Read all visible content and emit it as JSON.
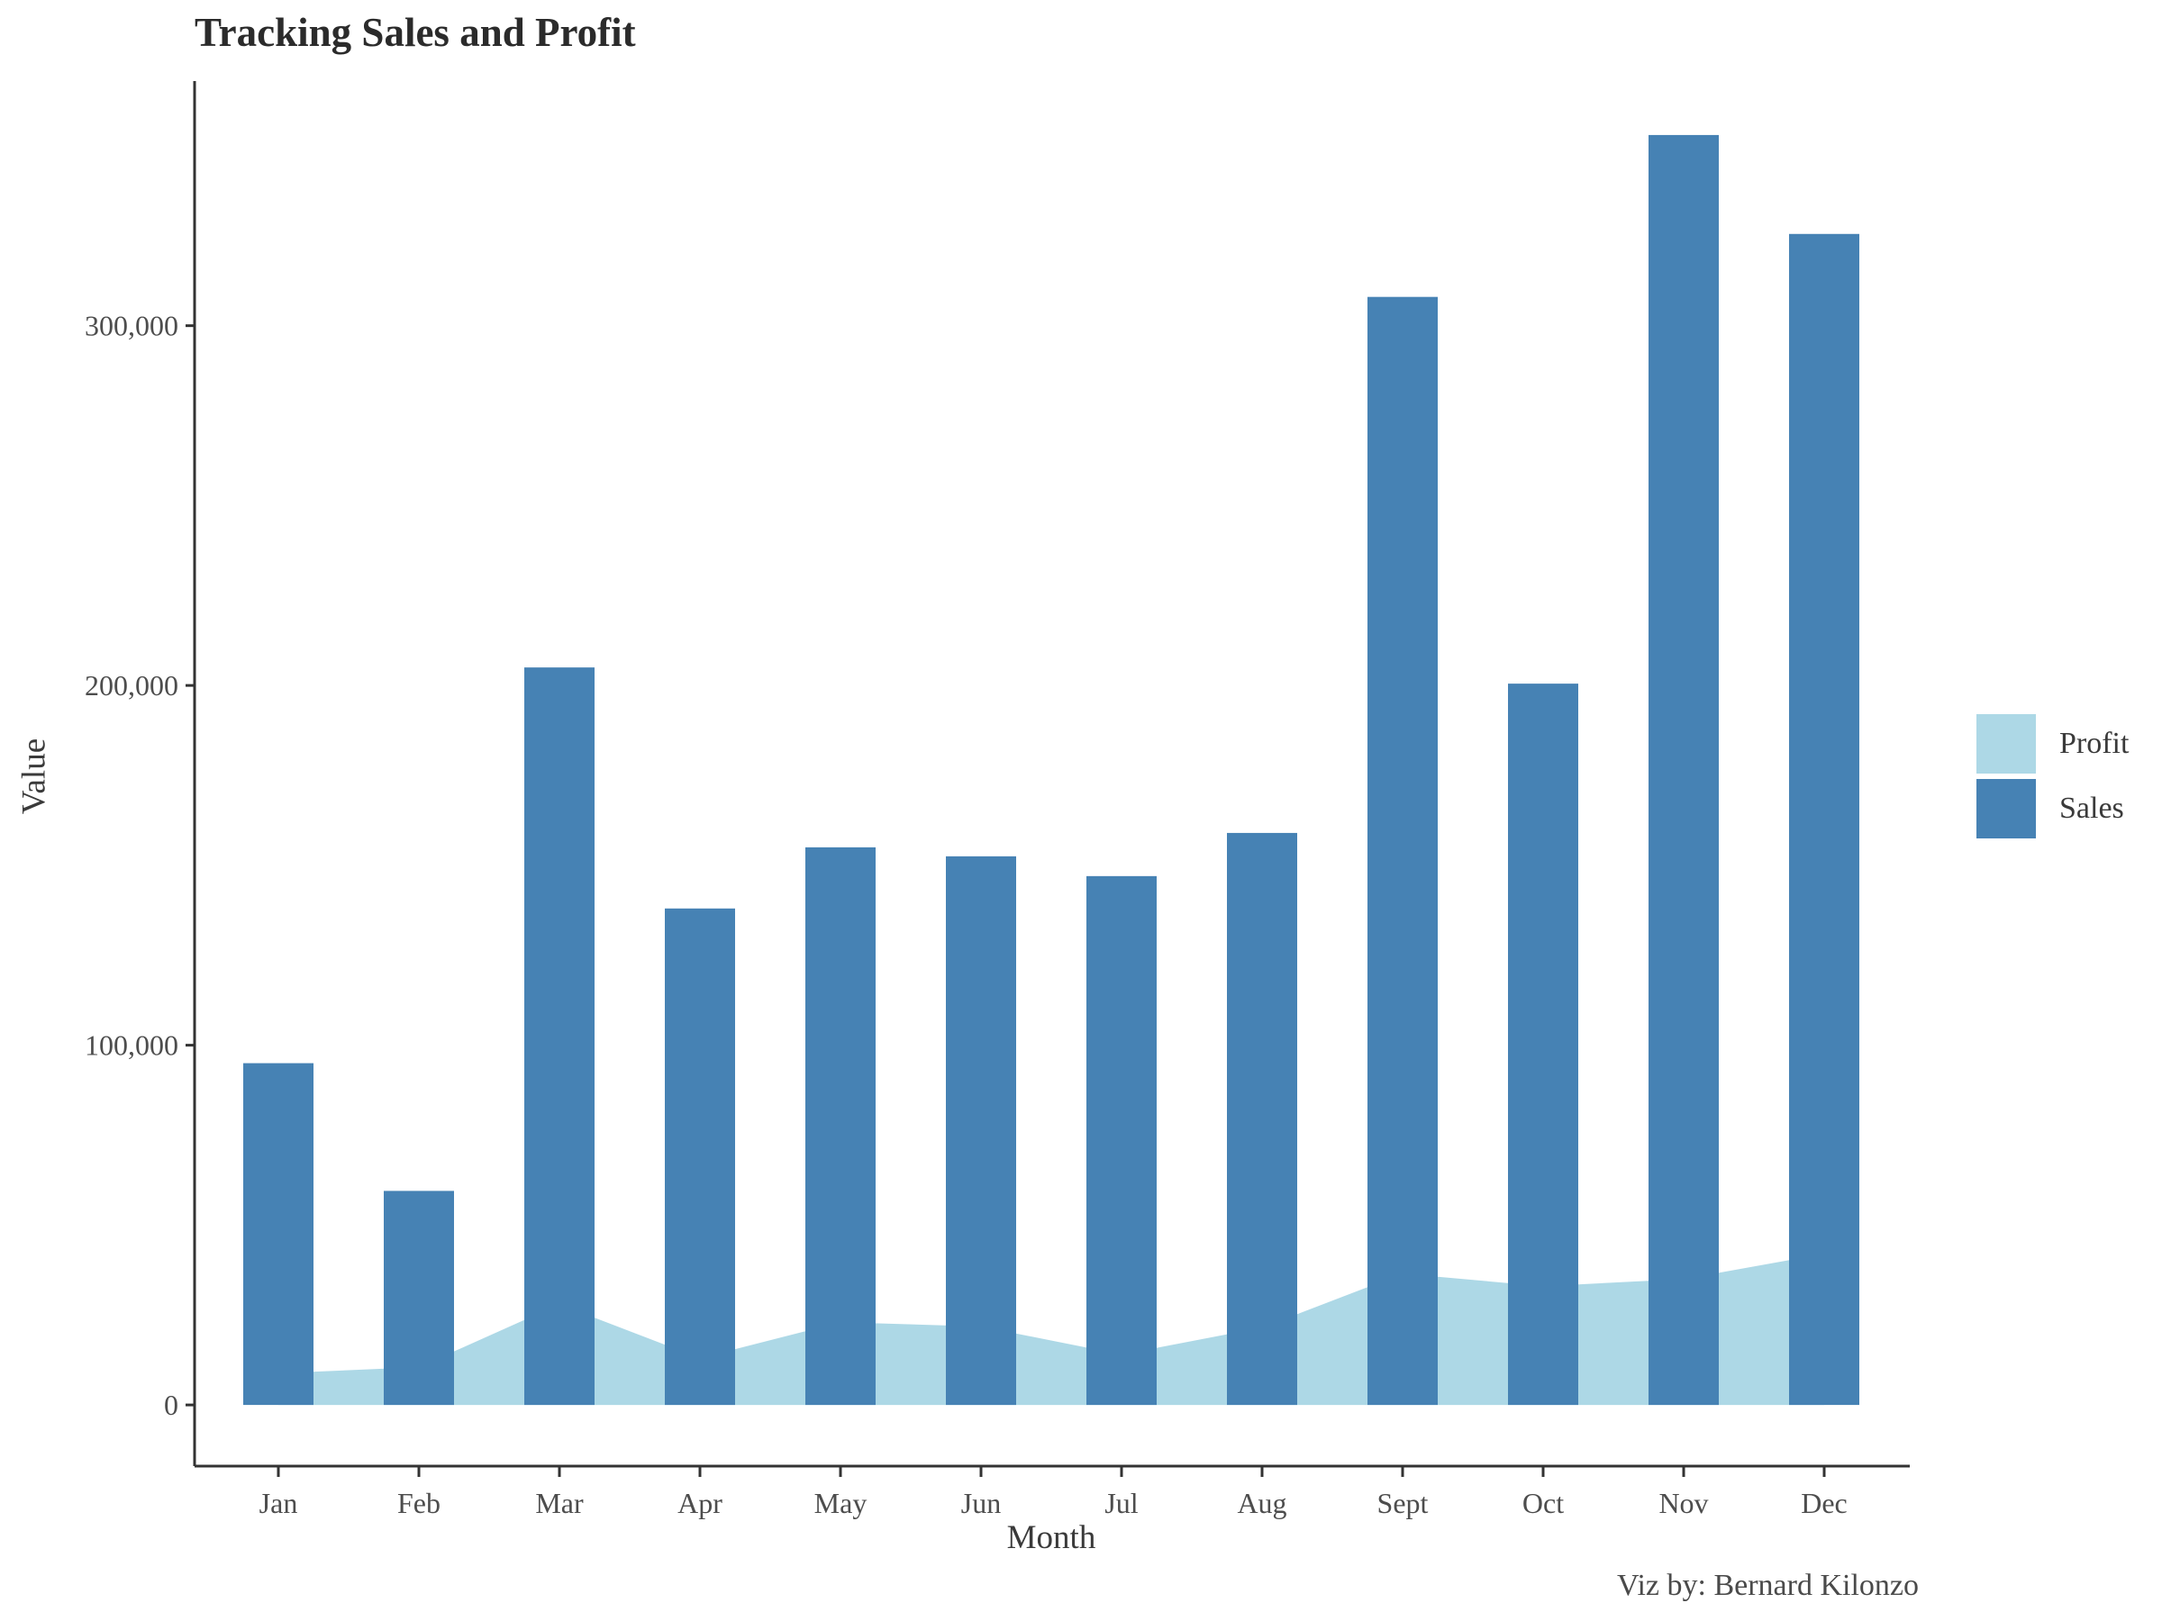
{
  "chart_data": {
    "type": "bar",
    "title": "Tracking Sales and Profit",
    "caption": "Viz by: Bernard Kilonzo",
    "xlabel": "Month",
    "ylabel": "Value",
    "categories": [
      "Jan",
      "Feb",
      "Mar",
      "Apr",
      "May",
      "Jun",
      "Jul",
      "Aug",
      "Sept",
      "Oct",
      "Nov",
      "Dec"
    ],
    "ylim": [
      -17000,
      368000
    ],
    "yticks": [
      0,
      100000,
      200000,
      300000
    ],
    "ytick_labels": [
      "0",
      "100,000",
      "200,000",
      "300,000"
    ],
    "grid": false,
    "legend_position": "right",
    "series": [
      {
        "name": "Profit",
        "type": "area",
        "color": "#add8e6",
        "values": [
          8800,
          10500,
          28000,
          13000,
          23000,
          21800,
          14000,
          21500,
          36500,
          33000,
          35000,
          42000
        ]
      },
      {
        "name": "Sales",
        "type": "bar",
        "color": "#4682b4",
        "values": [
          95000,
          59500,
          205000,
          138000,
          155000,
          152500,
          147000,
          159000,
          308000,
          200500,
          353000,
          325500
        ]
      }
    ]
  }
}
